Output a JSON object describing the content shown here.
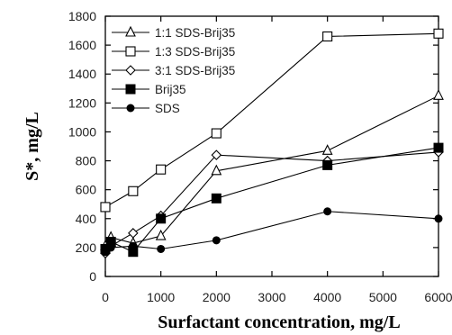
{
  "chart_data": {
    "type": "line",
    "title": "",
    "xlabel": "Surfactant concentration, mg/L",
    "ylabel": "S*, mg/L",
    "xlim": [
      0,
      6000
    ],
    "ylim": [
      0,
      1800
    ],
    "xticks": [
      0,
      1000,
      2000,
      3000,
      4000,
      5000,
      6000
    ],
    "yticks": [
      0,
      200,
      400,
      600,
      800,
      1000,
      1200,
      1400,
      1600,
      1800
    ],
    "grid": false,
    "legend_position": "top-left",
    "series": [
      {
        "name": "1:1 SDS-Brij35",
        "marker": "triangle-open",
        "x": [
          0,
          100,
          500,
          1000,
          2000,
          4000,
          6000
        ],
        "y": [
          210,
          270,
          230,
          280,
          730,
          870,
          1250
        ]
      },
      {
        "name": "1:3 SDS-Brij35",
        "marker": "square-open",
        "x": [
          0,
          500,
          1000,
          2000,
          4000,
          6000
        ],
        "y": [
          480,
          590,
          740,
          990,
          1660,
          1680
        ]
      },
      {
        "name": "3:1 SDS-Brij35",
        "marker": "diamond-open",
        "x": [
          0,
          100,
          500,
          1000,
          2000,
          4000,
          6000
        ],
        "y": [
          160,
          210,
          300,
          420,
          840,
          800,
          860
        ]
      },
      {
        "name": "Brij35",
        "marker": "square-filled",
        "x": [
          0,
          100,
          500,
          1000,
          2000,
          4000,
          6000
        ],
        "y": [
          190,
          240,
          170,
          400,
          540,
          770,
          890
        ]
      },
      {
        "name": "SDS",
        "marker": "circle-filled",
        "x": [
          0,
          100,
          500,
          1000,
          2000,
          4000,
          6000
        ],
        "y": [
          170,
          200,
          210,
          190,
          250,
          450,
          400
        ]
      }
    ]
  }
}
